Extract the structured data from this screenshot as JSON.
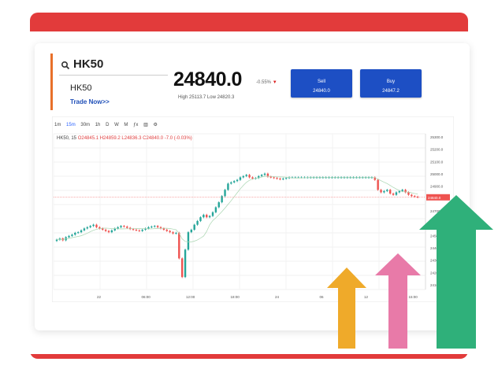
{
  "symbol": {
    "search_value": "HK50",
    "name": "HK50",
    "trade_link": "Trade Now>>"
  },
  "quote": {
    "price": "24840.0",
    "change": "-0.55%",
    "high_low": "High 25113.7   Low 24820.3"
  },
  "buttons": {
    "sell_label": "Sell",
    "sell_price": "24840.0",
    "buy_label": "Buy",
    "buy_price": "24847.2"
  },
  "toolbar": [
    "1m",
    "15m",
    "30m",
    "1h",
    "D",
    "W",
    "M"
  ],
  "ohlc": {
    "prefix": "HK50, 15",
    "values": "O24845.1  H24859.2  L24836.3  C24840.0  -7.0 (-0.03%)"
  },
  "chart_data": {
    "type": "candlestick",
    "x_ticks": [
      "22",
      "06:00",
      "12:00",
      "18:00",
      "24",
      "06",
      "12",
      "15:00"
    ],
    "y_ticks": [
      "25300.0",
      "25200.0",
      "25100.0",
      "25000.0",
      "24900.0",
      "24800.0",
      "24700.0",
      "24600.0",
      "24500.0",
      "24400.0",
      "24300.0",
      "24200.0",
      "24100.0"
    ],
    "last_price_label": "24840.0",
    "ylim": [
      24100,
      25350
    ],
    "closes": [
      24500,
      24510,
      24495,
      24520,
      24530,
      24540,
      24555,
      24560,
      24575,
      24590,
      24600,
      24610,
      24620,
      24600,
      24590,
      24580,
      24570,
      24560,
      24575,
      24590,
      24600,
      24610,
      24605,
      24595,
      24585,
      24580,
      24575,
      24570,
      24580,
      24590,
      24600,
      24605,
      24610,
      24600,
      24590,
      24580,
      24570,
      24560,
      24550,
      24555,
      24350,
      24200,
      24420,
      24560,
      24580,
      24620,
      24650,
      24680,
      24700,
      24680,
      24690,
      24720,
      24760,
      24800,
      24850,
      24900,
      24950,
      24960,
      24970,
      24980,
      25000,
      25010,
      25020,
      25000,
      24990,
      24995,
      25010,
      25020,
      25030,
      25005,
      25000,
      24995,
      24990,
      24985,
      24990,
      24995,
      25000,
      25000,
      25000,
      25000,
      25000,
      25000,
      25000,
      25000,
      25000,
      25000,
      25000,
      25000,
      25000,
      25000,
      25000,
      25000,
      25000,
      25000,
      25000,
      25000,
      25000,
      25000,
      25000,
      25000,
      25000,
      25000,
      25000,
      25000,
      24980,
      24900,
      24880,
      24890,
      24900,
      24870,
      24860,
      24880,
      24890,
      24900,
      24880,
      24860,
      24850,
      24845,
      24840
    ]
  },
  "growth_arrows": [
    {
      "color": "#efaa2a",
      "level": 0.5
    },
    {
      "color": "#e87aa8",
      "level": 0.65
    },
    {
      "color": "#2fb07a",
      "level": 1.0
    }
  ]
}
